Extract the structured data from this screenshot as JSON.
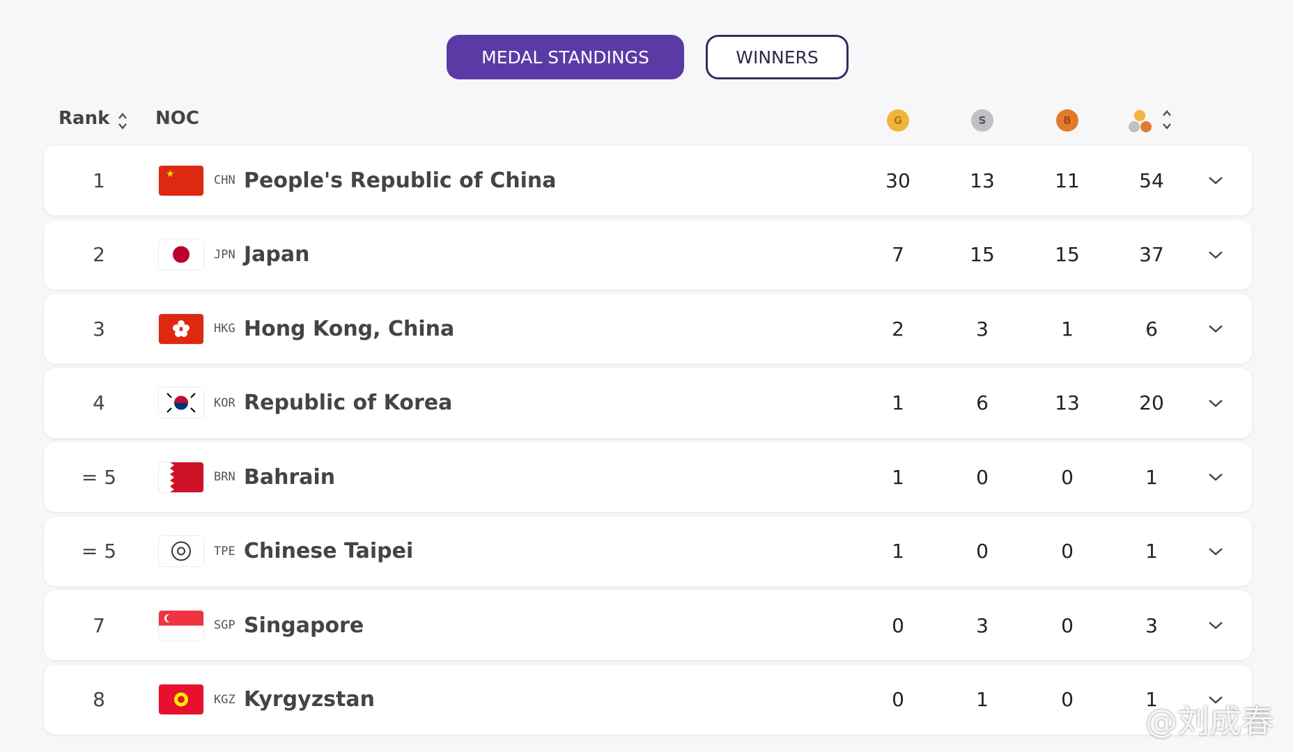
{
  "tabs": [
    "MEDAL STANDINGS",
    "WINNERS"
  ],
  "header": {
    "rank": "Rank",
    "noc": "NOC",
    "gold": "G",
    "silver": "S",
    "bronze": "B"
  },
  "rows": [
    {
      "rank": "1",
      "code": "CHN",
      "name": "People's Republic of China",
      "gold": 30,
      "silver": 13,
      "bronze": 11,
      "total": 54
    },
    {
      "rank": "2",
      "code": "JPN",
      "name": "Japan",
      "gold": 7,
      "silver": 15,
      "bronze": 15,
      "total": 37
    },
    {
      "rank": "3",
      "code": "HKG",
      "name": "Hong Kong, China",
      "gold": 2,
      "silver": 3,
      "bronze": 1,
      "total": 6
    },
    {
      "rank": "4",
      "code": "KOR",
      "name": "Republic of Korea",
      "gold": 1,
      "silver": 6,
      "bronze": 13,
      "total": 20
    },
    {
      "rank": "= 5",
      "code": "BRN",
      "name": "Bahrain",
      "gold": 1,
      "silver": 0,
      "bronze": 0,
      "total": 1
    },
    {
      "rank": "= 5",
      "code": "TPE",
      "name": "Chinese Taipei",
      "gold": 1,
      "silver": 0,
      "bronze": 0,
      "total": 1
    },
    {
      "rank": "7",
      "code": "SGP",
      "name": "Singapore",
      "gold": 0,
      "silver": 3,
      "bronze": 0,
      "total": 3
    },
    {
      "rank": "8",
      "code": "KGZ",
      "name": "Kyrgyzstan",
      "gold": 0,
      "silver": 1,
      "bronze": 0,
      "total": 1
    }
  ],
  "watermark": "@刘成春"
}
